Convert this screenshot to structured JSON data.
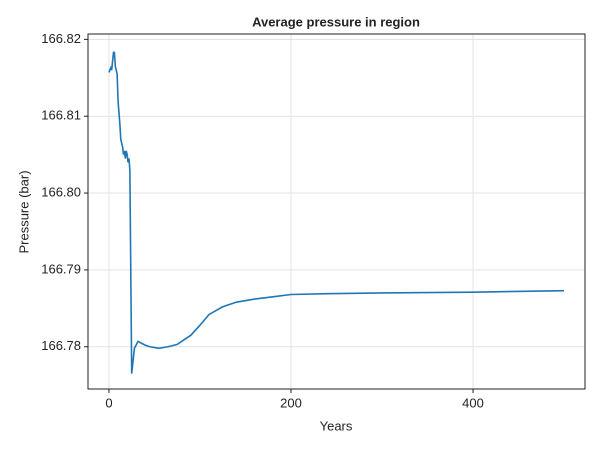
{
  "chart_data": {
    "type": "line",
    "title": "Average pressure in region",
    "xlabel": "Years",
    "ylabel": "Pressure (bar)",
    "x": [
      0,
      2,
      3,
      5,
      6,
      7,
      9,
      10,
      12,
      13,
      15,
      16,
      17,
      18,
      19,
      20,
      21,
      22,
      23,
      25,
      26,
      28,
      32,
      35,
      40,
      45,
      55,
      60,
      65,
      75,
      90,
      100,
      110,
      125,
      140,
      160,
      180,
      200,
      240,
      300,
      400,
      500
    ],
    "series": [
      {
        "color": "#1f77b4",
        "values": [
          166.8157,
          166.8163,
          166.816,
          166.8183,
          166.8183,
          166.8165,
          166.8155,
          166.812,
          166.809,
          166.807,
          166.806,
          166.805,
          166.8055,
          166.8045,
          166.8055,
          166.805,
          166.804,
          166.8045,
          166.803,
          166.7765,
          166.7776,
          166.7798,
          166.7807,
          166.7805,
          166.7802,
          166.78,
          166.7798,
          166.7799,
          166.78,
          166.7803,
          166.7815,
          166.7828,
          166.7842,
          166.7852,
          166.7858,
          166.7862,
          166.7865,
          166.7868,
          166.7869,
          166.787,
          166.7871,
          166.7873
        ]
      }
    ],
    "xlim": [
      -23,
      523
    ],
    "xticks": [
      0,
      200,
      400
    ],
    "ylim": [
      166.7745,
      166.8207
    ],
    "yticks": [
      166.78,
      166.79,
      {
        "value": 166.8,
        "label": "166.80"
      },
      166.81,
      166.82
    ],
    "grid": true
  }
}
